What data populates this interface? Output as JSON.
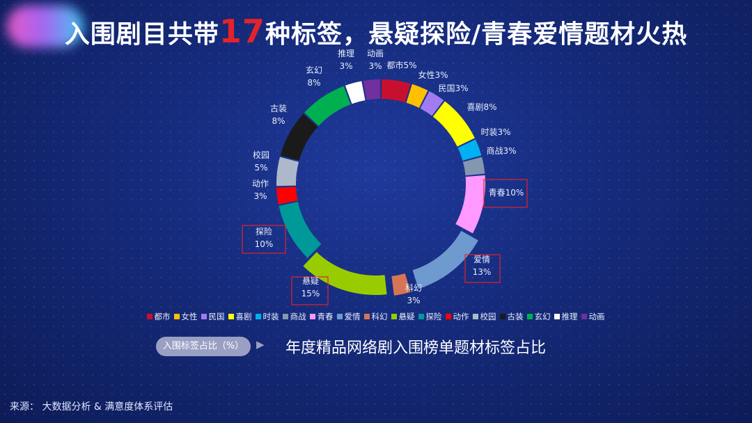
{
  "title": {
    "prefix": "入围剧目共带",
    "highlight": "17",
    "suffix": "种标签，悬疑探险/青春爱情题材火热"
  },
  "chart_data": {
    "type": "donut",
    "unit": "%",
    "slices": [
      {
        "name": "都市",
        "value": 5,
        "color": "#c8102e"
      },
      {
        "name": "女性",
        "value": 3,
        "color": "#ffc000"
      },
      {
        "name": "民国",
        "value": 3,
        "color": "#a27bf2"
      },
      {
        "name": "喜剧",
        "value": 8,
        "color": "#ffff00"
      },
      {
        "name": "时装",
        "value": 3,
        "color": "#00b0f0"
      },
      {
        "name": "商战",
        "value": 3,
        "color": "#8497b0"
      },
      {
        "name": "青春",
        "value": 10,
        "color": "#ff99ff"
      },
      {
        "name": "爱情",
        "value": 13,
        "color": "#6f9ad0"
      },
      {
        "name": "科幻",
        "value": 3,
        "color": "#d67556"
      },
      {
        "name": "悬疑",
        "value": 15,
        "color": "#99cc00"
      },
      {
        "name": "探险",
        "value": 10,
        "color": "#009999"
      },
      {
        "name": "动作",
        "value": 3,
        "color": "#ff0000"
      },
      {
        "name": "校园",
        "value": 5,
        "color": "#adb9ca"
      },
      {
        "name": "古装",
        "value": 8,
        "color": "#1a1a1a"
      },
      {
        "name": "玄幻",
        "value": 8,
        "color": "#00b050"
      },
      {
        "name": "推理",
        "value": 3,
        "color": "#ffffff"
      },
      {
        "name": "动画",
        "value": 3,
        "color": "#7030a0"
      }
    ],
    "legend_position": "bottom",
    "highlighted": [
      "青春",
      "爱情",
      "悬疑",
      "探险"
    ]
  },
  "tag_label": "入围标签占比（%）",
  "arrow_glyph": "▶",
  "subtitle": "年度精品网络剧入围榜单题材标签占比",
  "source": "来源： 大数据分析 & 满意度体系评估"
}
